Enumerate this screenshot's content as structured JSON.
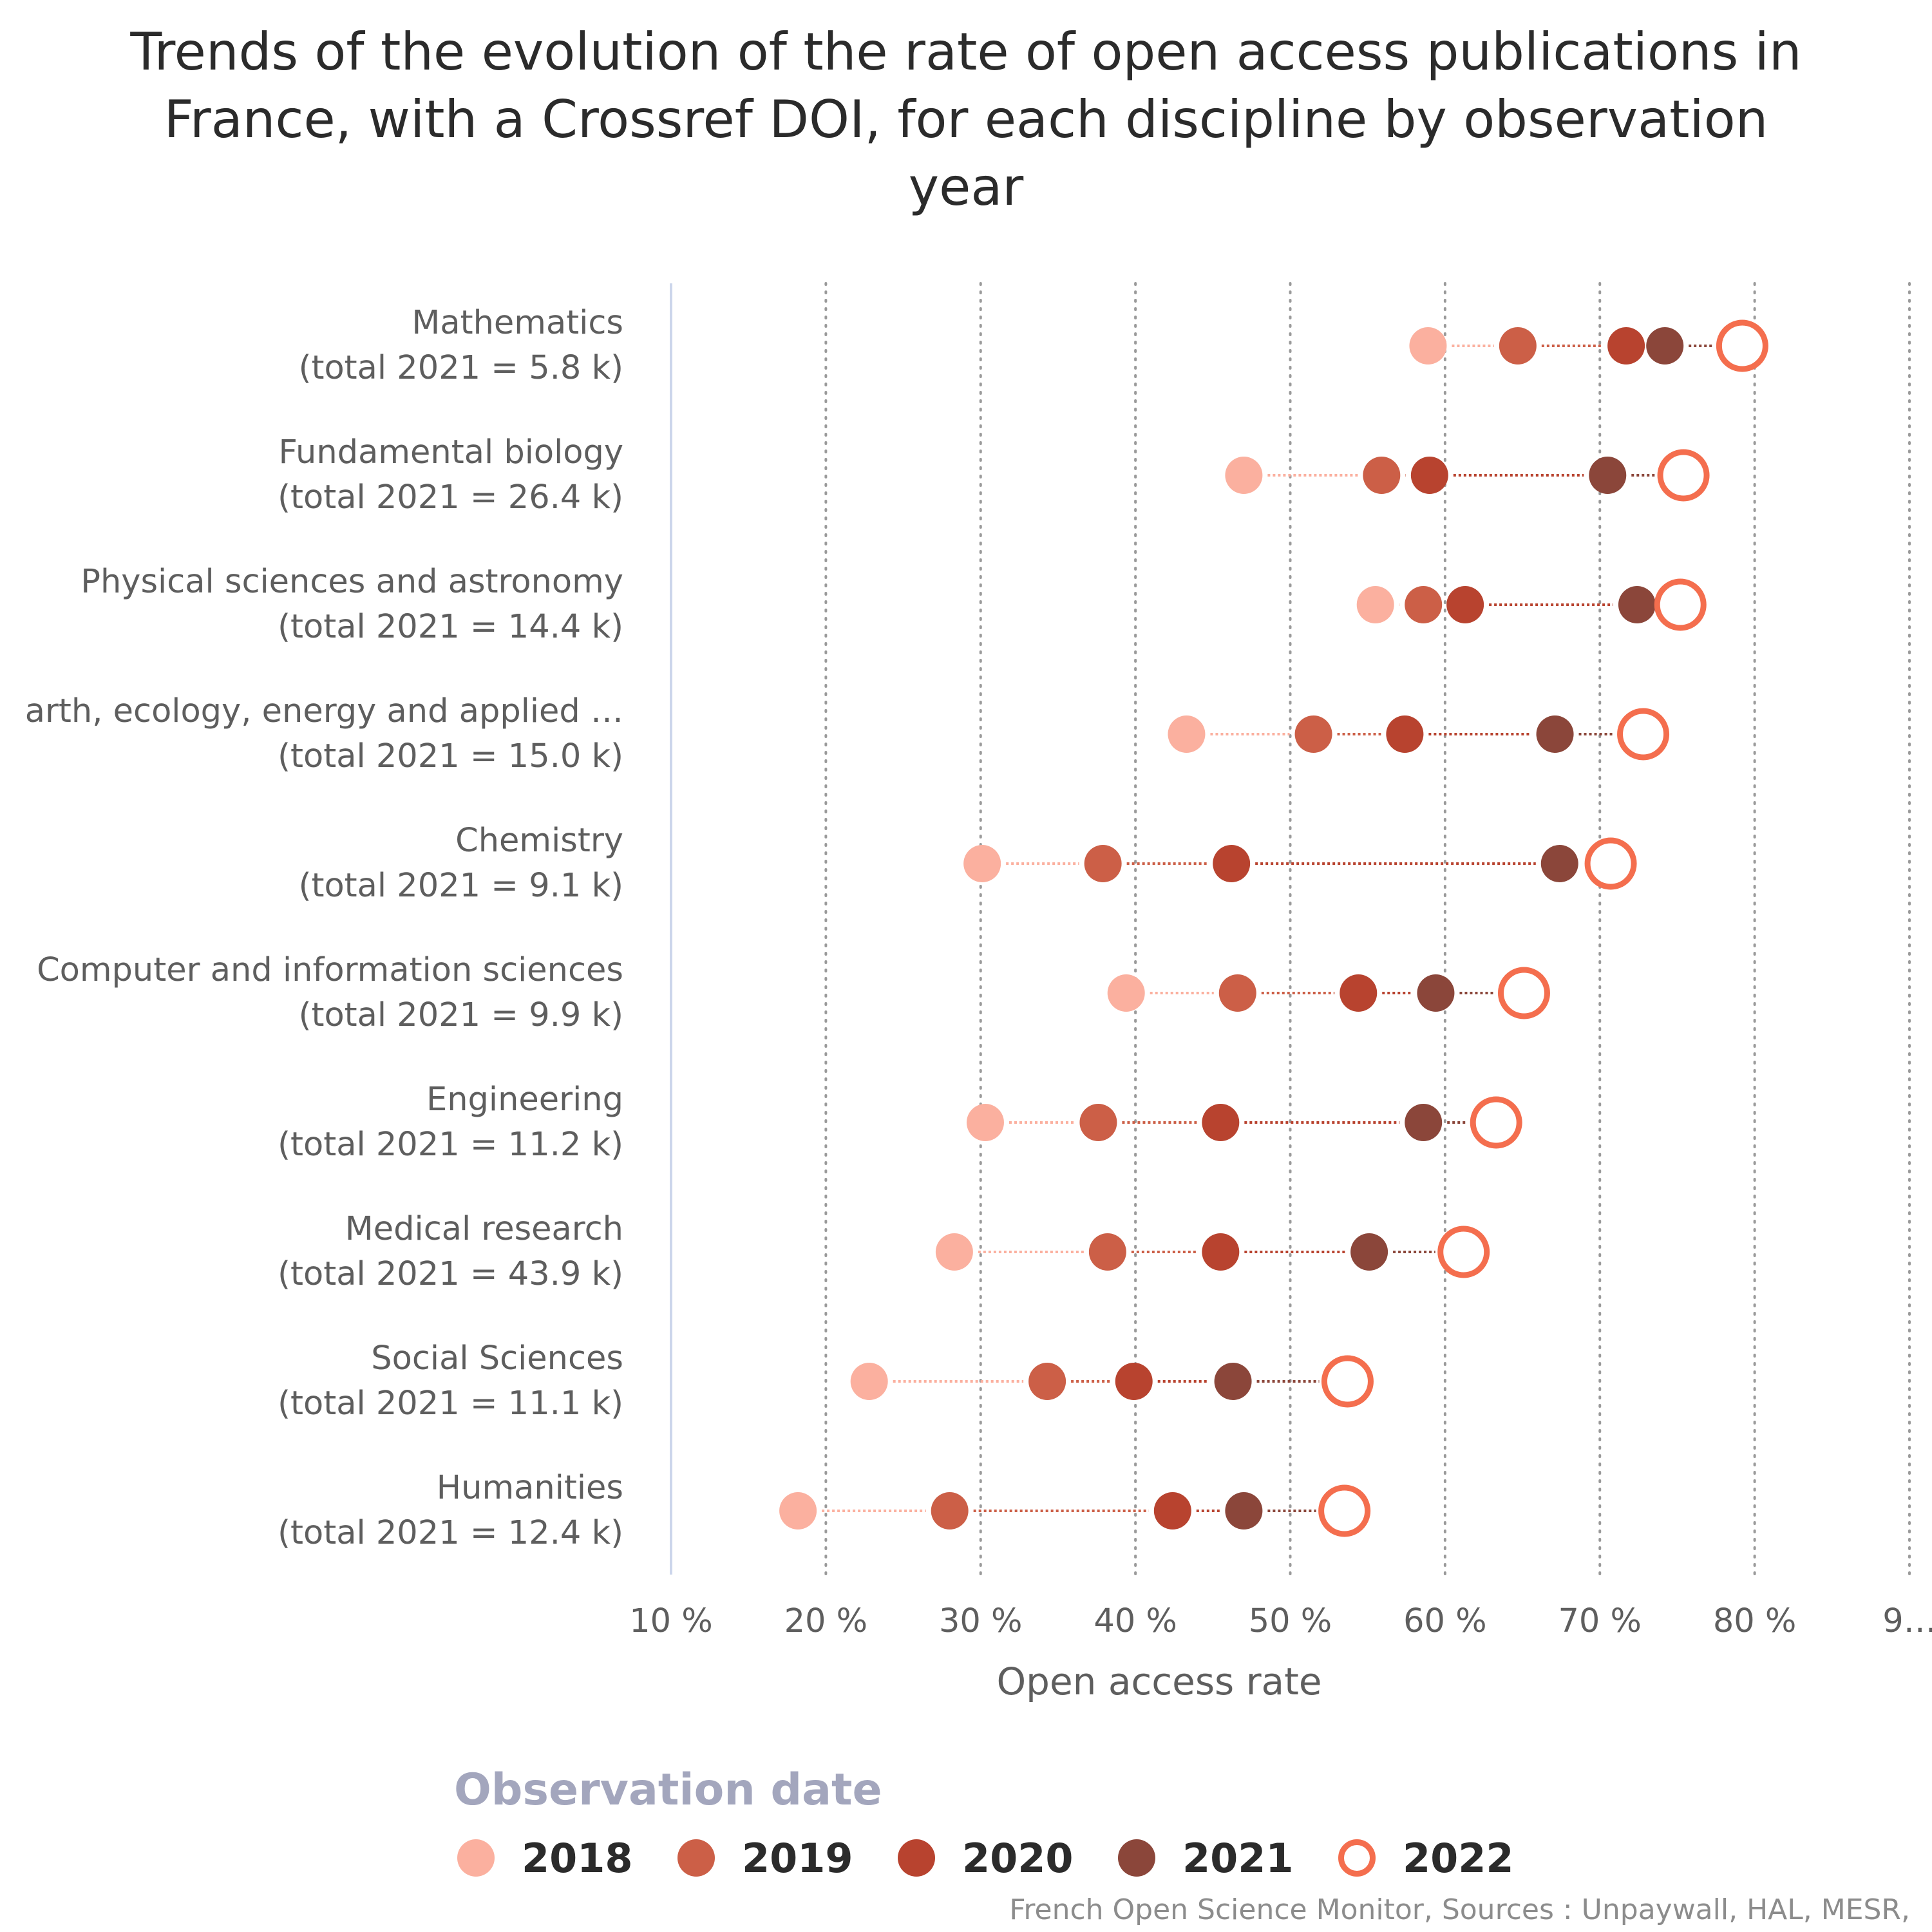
{
  "title_lines": [
    "Trends of the evolution of the rate of open access publications in",
    "France, with a Crossref DOI, for each discipline by observation",
    "year"
  ],
  "credits": "French Open Science Monitor, Sources : Unpaywall, HAL, MESR,",
  "chart_data": {
    "type": "scatter",
    "subtype": "dumbbell",
    "orientation": "horizontal",
    "title": "Trends of the evolution of the rate of open access publications in France, with a Crossref DOI, for each discipline by observation year",
    "xlabel": "Open access rate",
    "xlim": [
      10,
      90
    ],
    "x_ticks": [
      "10 %",
      "20 %",
      "30 %",
      "40 %",
      "50 %",
      "60 %",
      "70 %",
      "80 %",
      "9…"
    ],
    "grid": "vertical dotted",
    "legend_title": "Observation date",
    "legend_position": "bottom",
    "series": [
      {
        "name": "2018",
        "color": "#fbb09f",
        "style": "filled"
      },
      {
        "name": "2019",
        "color": "#cc5f47",
        "style": "filled"
      },
      {
        "name": "2020",
        "color": "#b8432f",
        "style": "filled"
      },
      {
        "name": "2021",
        "color": "#8b463a",
        "style": "filled"
      },
      {
        "name": "2022",
        "color": "#f46e4e",
        "style": "hollow"
      }
    ],
    "categories": [
      {
        "name": "Mathematics",
        "total": "(total 2021 = 5.8 k)",
        "values": [
          58.9,
          64.7,
          71.7,
          74.2,
          79.2
        ]
      },
      {
        "name": "Fundamental biology",
        "total": "(total 2021 = 26.4 k)",
        "values": [
          47.0,
          55.9,
          59.0,
          70.5,
          75.4
        ]
      },
      {
        "name": "Physical sciences and astronomy",
        "total": "(total 2021 = 14.4 k)",
        "values": [
          55.5,
          58.6,
          61.3,
          72.4,
          75.2
        ]
      },
      {
        "name": "arth, ecology, energy and applied …",
        "total": "(total 2021 = 15.0 k)",
        "values": [
          43.3,
          51.5,
          57.4,
          67.1,
          72.8
        ]
      },
      {
        "name": "Chemistry",
        "total": "(total 2021 = 9.1 k)",
        "values": [
          30.1,
          37.9,
          46.2,
          67.4,
          70.7
        ]
      },
      {
        "name": "Computer and information sciences",
        "total": "(total 2021 = 9.9 k)",
        "values": [
          39.4,
          46.6,
          54.4,
          59.4,
          65.1
        ]
      },
      {
        "name": "Engineering",
        "total": "(total 2021 = 11.2 k)",
        "values": [
          30.3,
          37.6,
          45.5,
          58.6,
          63.3
        ]
      },
      {
        "name": "Medical research",
        "total": "(total 2021 = 43.9 k)",
        "values": [
          28.3,
          38.2,
          45.5,
          55.1,
          61.2
        ]
      },
      {
        "name": "Social Sciences",
        "total": "(total 2021 = 11.1 k)",
        "values": [
          22.8,
          34.3,
          39.9,
          46.3,
          53.7
        ]
      },
      {
        "name": "Humanities",
        "total": "(total 2021 = 12.4 k)",
        "values": [
          18.2,
          28.0,
          42.4,
          47.0,
          53.5
        ]
      }
    ]
  }
}
